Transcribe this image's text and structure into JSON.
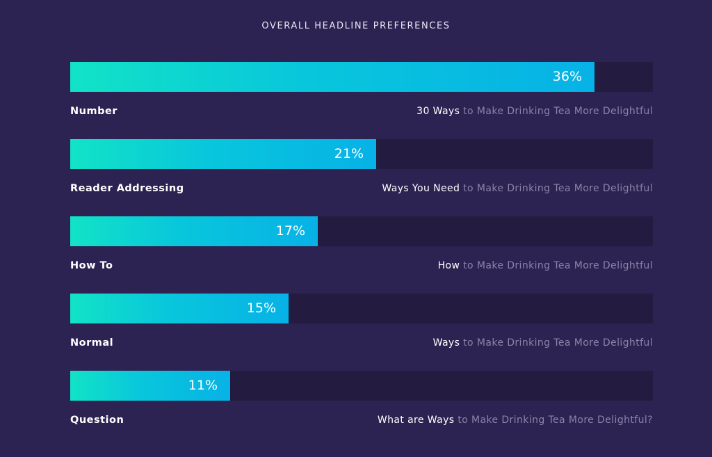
{
  "title": "OVERALL HEADLINE PREFERENCES",
  "colors": {
    "background": "#2d2352",
    "track": "#231c40",
    "bar_start": "#12e3c6",
    "bar_end": "#07b2e6",
    "muted_text": "#8a83a9"
  },
  "chart_data": {
    "type": "bar",
    "orientation": "horizontal",
    "title": "OVERALL HEADLINE PREFERENCES",
    "xlim": [
      0,
      40
    ],
    "grid": false,
    "categories": [
      "Number",
      "Reader Addressing",
      "How To",
      "Normal",
      "Question"
    ],
    "values": [
      36,
      21,
      17,
      15,
      11
    ],
    "value_labels": [
      "36%",
      "21%",
      "17%",
      "15%",
      "11%"
    ],
    "examples": [
      {
        "strong": "30 Ways",
        "muted": " to Make Drinking Tea More Delightful"
      },
      {
        "strong": "Ways You Need",
        "muted": " to Make Drinking Tea More Delightful"
      },
      {
        "strong": "How",
        "muted": " to Make Drinking Tea More Delightful"
      },
      {
        "strong": "Ways",
        "muted": " to Make Drinking Tea More Delightful"
      },
      {
        "strong": "What are Ways",
        "muted": " to Make Drinking Tea More Delightful?"
      }
    ]
  }
}
